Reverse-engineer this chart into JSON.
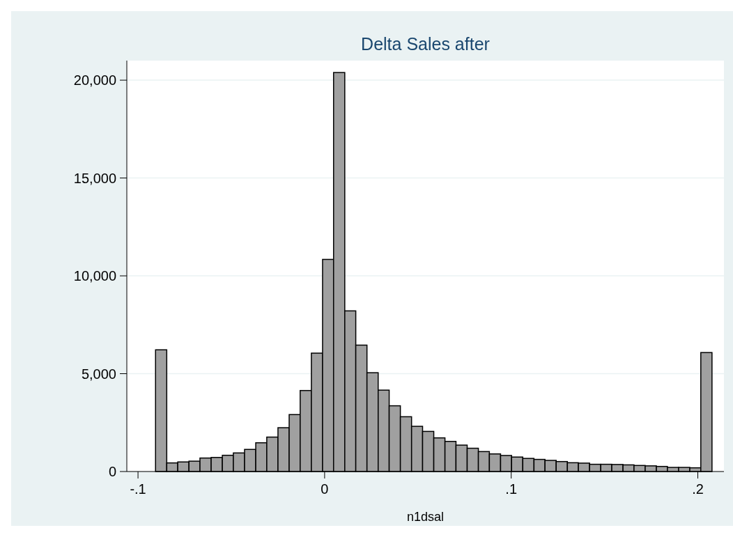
{
  "chart_data": {
    "type": "histogram",
    "title": "Delta Sales after",
    "xlabel": "n1dsal",
    "bins": [
      -0.0906,
      -0.0846,
      -0.0787,
      -0.0727,
      -0.0668,
      -0.0608,
      -0.0548,
      -0.0489,
      -0.0429,
      -0.0369,
      -0.031,
      -0.025,
      -0.019,
      -0.0131,
      -0.0071,
      -0.0011,
      0.0048,
      0.0108,
      0.0167,
      0.0227,
      0.0287,
      0.0346,
      0.0406,
      0.0466,
      0.0525,
      0.0585,
      0.0645,
      0.0704,
      0.0764,
      0.0824,
      0.0883,
      0.0943,
      0.1002,
      0.1062,
      0.1122,
      0.1181,
      0.1241,
      0.1301,
      0.136,
      0.142,
      0.148,
      0.1539,
      0.1599,
      0.1658,
      0.1718,
      0.1778,
      0.1837,
      0.1897,
      0.1957,
      0.2016,
      0.2076
    ],
    "values": [
      6220,
      440,
      490,
      530,
      690,
      720,
      830,
      950,
      1130,
      1470,
      1760,
      2240,
      2910,
      4140,
      6050,
      10840,
      20390,
      8210,
      6460,
      5050,
      4160,
      3360,
      2800,
      2310,
      2050,
      1720,
      1540,
      1350,
      1190,
      1020,
      900,
      820,
      740,
      670,
      620,
      570,
      510,
      450,
      430,
      370,
      370,
      360,
      340,
      310,
      290,
      260,
      210,
      210,
      190,
      6080
    ],
    "color": "#a0a0a0",
    "xlim": [
      -0.106,
      0.214
    ],
    "ylim": [
      0,
      21000
    ],
    "xticks": [
      {
        "value": -0.1,
        "label": "-.1"
      },
      0,
      {
        "value": 0.1,
        "label": ".1"
      },
      {
        "value": 0.2,
        "label": ".2"
      }
    ],
    "yticks": [
      0,
      {
        "value": 5000,
        "label": "5,000"
      },
      {
        "value": 10000,
        "label": "10,000"
      },
      {
        "value": 15000,
        "label": "15,000"
      },
      {
        "value": 20000,
        "label": "20,000"
      }
    ],
    "grid": "y"
  }
}
